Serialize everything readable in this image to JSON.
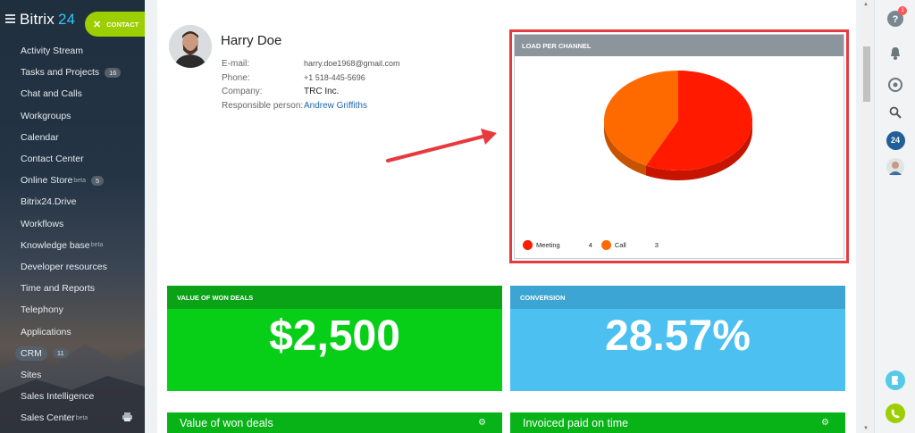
{
  "app": {
    "logo_name": "Bitrix",
    "logo_number": "24"
  },
  "header": {
    "contact_button": "CONTACT"
  },
  "sidebar": {
    "items": [
      {
        "label": "Activity Stream"
      },
      {
        "label": "Tasks and Projects",
        "badge": "16"
      },
      {
        "label": "Chat and Calls"
      },
      {
        "label": "Workgroups"
      },
      {
        "label": "Calendar"
      },
      {
        "label": "Contact Center"
      },
      {
        "label": "Online Store",
        "sup": "beta",
        "badge": "5"
      },
      {
        "label": "Bitrix24.Drive"
      },
      {
        "label": "Workflows"
      },
      {
        "label": "Knowledge base",
        "sup": "beta"
      },
      {
        "label": "Developer resources"
      },
      {
        "label": "Time and Reports"
      },
      {
        "label": "Telephony"
      },
      {
        "label": "Applications"
      },
      {
        "label": "CRM",
        "badge": "11",
        "active": true
      },
      {
        "label": "Sites"
      },
      {
        "label": "Sales Intelligence"
      },
      {
        "label": "Sales Center",
        "sup": "beta"
      }
    ]
  },
  "contact": {
    "name": "Harry Doe",
    "email_label": "E-mail:",
    "email": "harry.doe1968@gmail.com",
    "phone_label": "Phone:",
    "phone": "+1 518-445-5696",
    "company_label": "Company:",
    "company": "TRC Inc.",
    "responsible_label": "Responsible person:",
    "responsible": "Andrew Griffiths"
  },
  "load_per_channel": {
    "title": "LOAD PER CHANNEL",
    "legend": [
      {
        "name": "Meeting",
        "value": "4",
        "color": "#ff1a00"
      },
      {
        "name": "Call",
        "value": "3",
        "color": "#ff6a00"
      }
    ]
  },
  "chart_data": {
    "type": "pie",
    "title": "LOAD PER CHANNEL",
    "categories": [
      "Meeting",
      "Call"
    ],
    "values": [
      4,
      3
    ],
    "colors": [
      "#ff1a00",
      "#ff6a00"
    ],
    "legend": "bottom-left"
  },
  "cards": {
    "won_deals": {
      "title": "VALUE OF WON DEALS",
      "value": "$2,500"
    },
    "conversion": {
      "title": "CONVERSION",
      "value": "28.57%"
    }
  },
  "bottom_bars": {
    "left": "Value of won deals",
    "right": "Invoiced paid on time"
  },
  "rightbar": {
    "help_badge": "1",
    "b24_label": "24"
  },
  "colors": {
    "accent_green": "#9dcf00",
    "highlight_red": "#e63a3f",
    "card_green": "#07cf18",
    "card_blue": "#4cc0f0"
  }
}
